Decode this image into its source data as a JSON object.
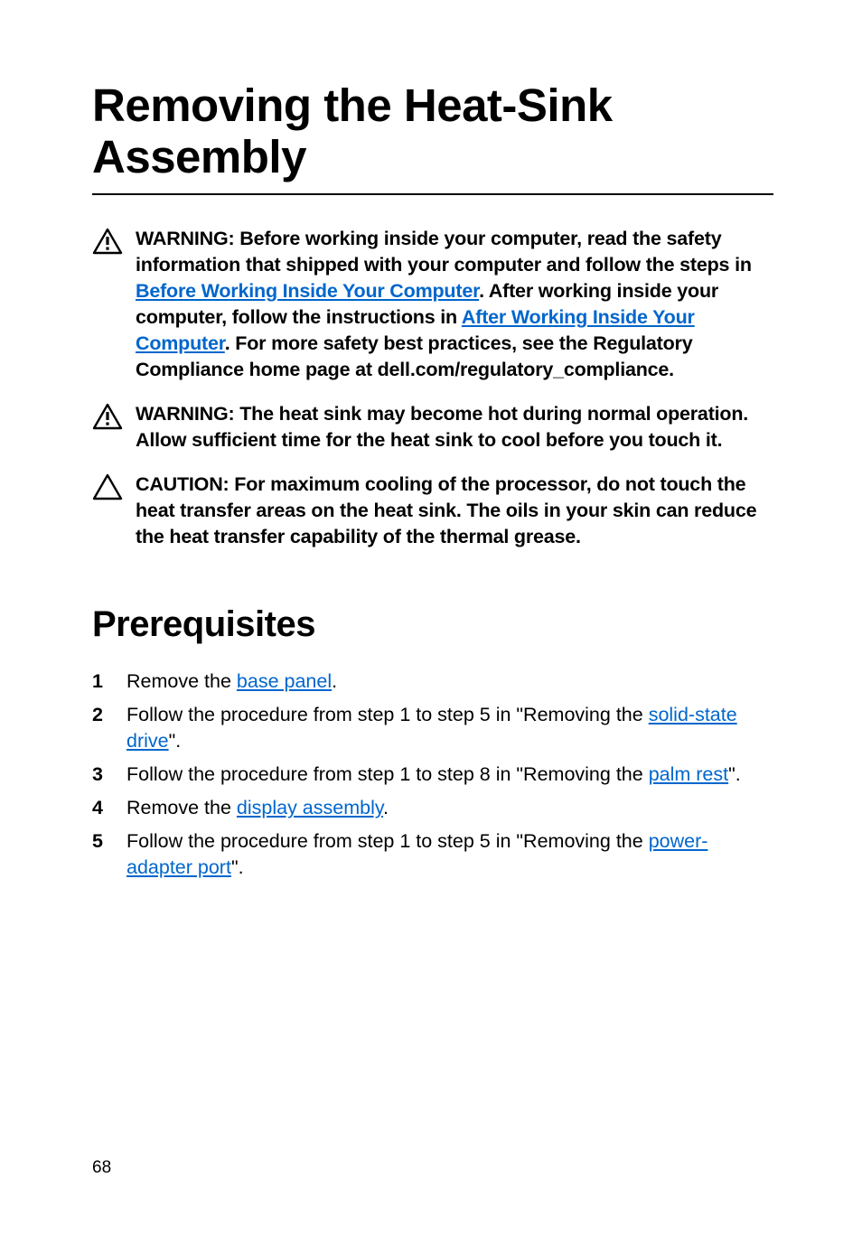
{
  "title": "Removing the Heat-Sink Assembly",
  "notices": [
    {
      "type": "warning",
      "parts": [
        {
          "t": "WARNING: Before working inside your computer, read the safety information that shipped with your computer and follow the steps in "
        },
        {
          "t": "Before Working Inside Your Computer",
          "link": true
        },
        {
          "t": ". After working inside your computer, follow the instructions in "
        },
        {
          "t": "After Working Inside Your Computer",
          "link": true
        },
        {
          "t": ". For more safety best practices, see the Regulatory Compliance home page at dell.com/regulatory_compliance."
        }
      ]
    },
    {
      "type": "warning",
      "parts": [
        {
          "t": "WARNING: The heat sink may become hot during normal operation. Allow sufficient time for the heat sink to cool before you touch it."
        }
      ]
    },
    {
      "type": "caution",
      "parts": [
        {
          "t": "CAUTION: For maximum cooling of the processor, do not touch the heat transfer areas on the heat sink. The oils in your skin can reduce the heat transfer capability of the thermal grease."
        }
      ]
    }
  ],
  "section_heading": "Prerequisites",
  "steps": [
    {
      "parts": [
        {
          "t": "Remove the "
        },
        {
          "t": "base panel",
          "link": true
        },
        {
          "t": "."
        }
      ]
    },
    {
      "parts": [
        {
          "t": "Follow the procedure from step 1 to step 5 in \"Removing the "
        },
        {
          "t": "solid-state drive",
          "link": true
        },
        {
          "t": "\"."
        }
      ]
    },
    {
      "parts": [
        {
          "t": "Follow the procedure from step 1 to step 8 in \"Removing the "
        },
        {
          "t": "palm rest",
          "link": true
        },
        {
          "t": "\"."
        }
      ]
    },
    {
      "parts": [
        {
          "t": "Remove the "
        },
        {
          "t": "display assembly",
          "link": true
        },
        {
          "t": "."
        }
      ]
    },
    {
      "parts": [
        {
          "t": "Follow the procedure from step 1 to step 5 in \"Removing the "
        },
        {
          "t": "power-adapter port",
          "link": true
        },
        {
          "t": "\"."
        }
      ]
    }
  ],
  "page_number": "68",
  "icons": {
    "warning": "warning-triangle-bang",
    "caution": "caution-triangle"
  },
  "colors": {
    "text": "#000000",
    "link": "#0066cc",
    "background": "#ffffff",
    "rule": "#000000"
  },
  "typography": {
    "title_fontsize": 51,
    "body_bold_fontsize": 21.5,
    "section_heading_fontsize": 40,
    "step_fontsize": 21.5,
    "page_num_fontsize": 19,
    "font_family": "Arial"
  }
}
